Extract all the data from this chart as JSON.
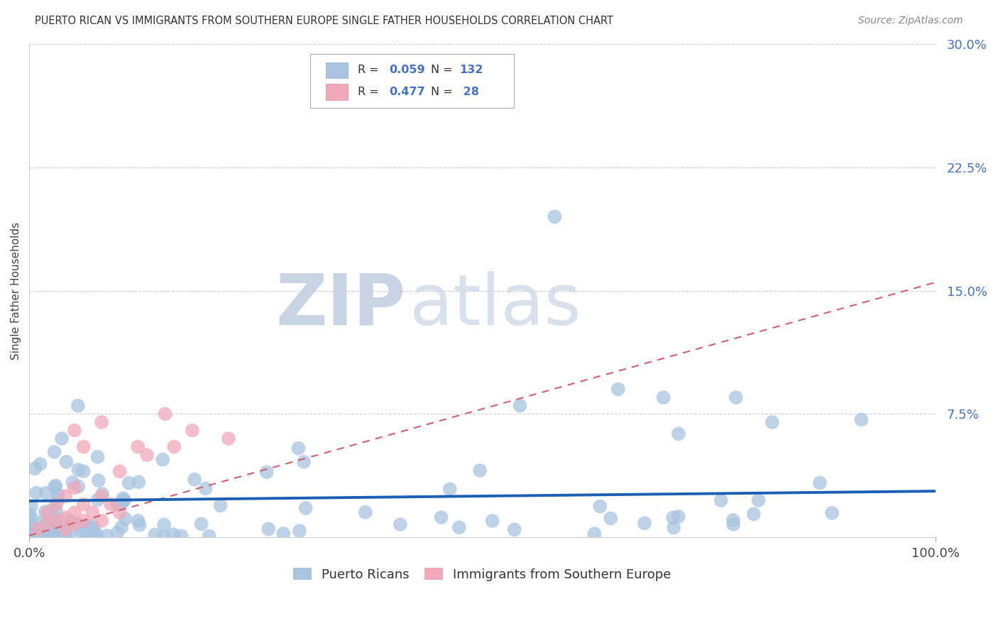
{
  "title": "PUERTO RICAN VS IMMIGRANTS FROM SOUTHERN EUROPE SINGLE FATHER HOUSEHOLDS CORRELATION CHART",
  "source": "Source: ZipAtlas.com",
  "ylabel": "Single Father Households",
  "blue_R": 0.059,
  "blue_N": 132,
  "pink_R": 0.477,
  "pink_N": 28,
  "blue_color": "#a8c4e0",
  "pink_color": "#f0a8b8",
  "blue_line_color": "#1a5fb4",
  "pink_line_color": "#d06070",
  "legend1": "Puerto Ricans",
  "legend2": "Immigrants from Southern Europe",
  "ylim": [
    0.0,
    0.3
  ],
  "xlim": [
    0.0,
    1.0
  ],
  "yticks": [
    0.0,
    0.075,
    0.15,
    0.225,
    0.3
  ],
  "ytick_labels": [
    "",
    "7.5%",
    "15.0%",
    "22.5%",
    "30.0%"
  ],
  "background_color": "#ffffff",
  "grid_color": "#ccccdd",
  "watermark_color": "#dde4ee"
}
